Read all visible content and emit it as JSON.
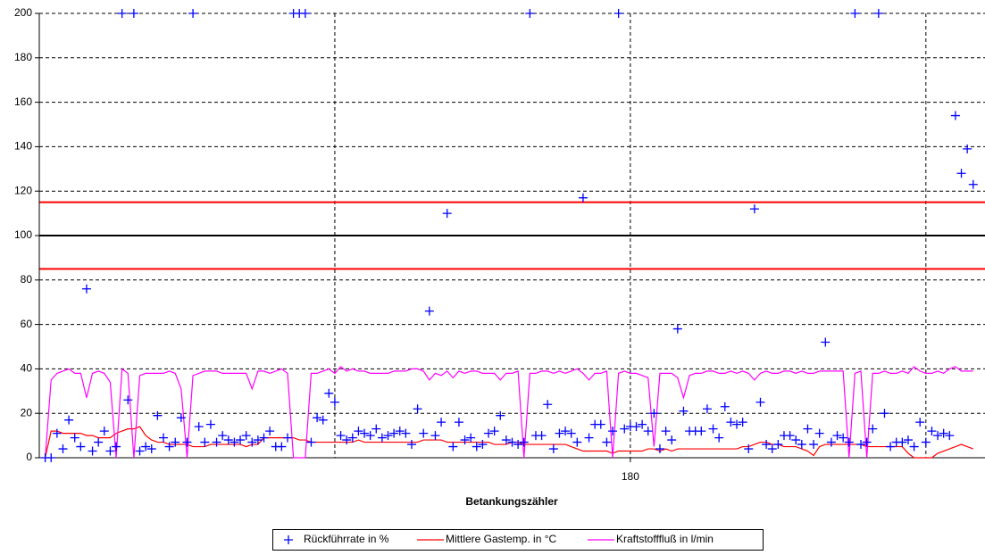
{
  "chart_data": {
    "type": "combo",
    "x_label": "Betankungszähler",
    "xlim": [
      80,
      240
    ],
    "xticks": [
      180
    ],
    "xgrid": [
      130,
      180,
      230
    ],
    "ylim": [
      0,
      200
    ],
    "yticks": [
      0,
      20,
      40,
      60,
      80,
      100,
      120,
      140,
      160,
      180,
      200
    ],
    "grid": true,
    "legend": "bottom",
    "reference_lines": [
      {
        "value": 115,
        "color": "#ff0000"
      },
      {
        "value": 100,
        "color": "#000000"
      },
      {
        "value": 85,
        "color": "#ff0000"
      }
    ],
    "x": [
      81,
      82,
      83,
      84,
      85,
      86,
      87,
      88,
      89,
      90,
      91,
      92,
      93,
      94,
      95,
      96,
      97,
      98,
      99,
      100,
      101,
      102,
      103,
      104,
      105,
      106,
      107,
      108,
      109,
      110,
      111,
      112,
      113,
      114,
      115,
      116,
      117,
      118,
      119,
      120,
      121,
      122,
      123,
      124,
      125,
      126,
      127,
      128,
      129,
      130,
      131,
      132,
      133,
      134,
      135,
      136,
      137,
      138,
      139,
      140,
      141,
      142,
      143,
      144,
      145,
      146,
      147,
      148,
      149,
      150,
      151,
      152,
      153,
      154,
      155,
      156,
      157,
      158,
      159,
      160,
      161,
      162,
      163,
      164,
      165,
      166,
      167,
      168,
      169,
      170,
      171,
      172,
      173,
      174,
      175,
      176,
      177,
      178,
      179,
      180,
      181,
      182,
      183,
      184,
      185,
      186,
      187,
      188,
      189,
      190,
      191,
      192,
      193,
      194,
      195,
      196,
      197,
      198,
      199,
      200,
      201,
      202,
      203,
      204,
      205,
      206,
      207,
      208,
      209,
      210,
      211,
      212,
      213,
      214,
      215,
      216,
      217,
      218,
      219,
      220,
      221,
      222,
      223,
      224,
      225,
      226,
      227,
      228,
      229,
      230,
      231,
      232,
      233,
      234,
      235,
      236,
      237,
      238
    ],
    "series": [
      {
        "name": "Rückführrate in %",
        "type": "scatter",
        "color": "#0000ff",
        "values": [
          0,
          0,
          11,
          4,
          17,
          9,
          5,
          76,
          3,
          7,
          12,
          3,
          5,
          200,
          26,
          200,
          3,
          5,
          4,
          19,
          9,
          5,
          7,
          18,
          7,
          200,
          14,
          7,
          15,
          7,
          10,
          8,
          7,
          8,
          10,
          7,
          8,
          9,
          12,
          5,
          5,
          9,
          200,
          200,
          200,
          7,
          18,
          17,
          29,
          25,
          10,
          8,
          9,
          12,
          11,
          10,
          13,
          9,
          10,
          11,
          12,
          11,
          6,
          22,
          11,
          66,
          10,
          16,
          110,
          5,
          16,
          8,
          9,
          5,
          6,
          11,
          12,
          19,
          8,
          7,
          6,
          7,
          200,
          10,
          10,
          24,
          4,
          11,
          12,
          11,
          7,
          117,
          9,
          15,
          15,
          7,
          12,
          200,
          13,
          14,
          14,
          15,
          12,
          20,
          4,
          12,
          8,
          58,
          21,
          12,
          12,
          12,
          22,
          13,
          9,
          23,
          16,
          15,
          16,
          4,
          112,
          25,
          6,
          4,
          6,
          10,
          10,
          8,
          6,
          13,
          6,
          11,
          52,
          7,
          10,
          9,
          7,
          200,
          6,
          7,
          13,
          200,
          20,
          5,
          7,
          7,
          8,
          5,
          16,
          7,
          12,
          10,
          11,
          10,
          154,
          128,
          139,
          123
        ]
      },
      {
        "name": "Mittlere Gastemp. in °C",
        "type": "line",
        "color": "#ff0000",
        "values": [
          0,
          12,
          12,
          11,
          11,
          11,
          11,
          10,
          10,
          9,
          9,
          9,
          11,
          12,
          13,
          13,
          14,
          10,
          8,
          7,
          7,
          6,
          6,
          6,
          6,
          5,
          5,
          5,
          6,
          6,
          6,
          6,
          6,
          6,
          5,
          6,
          6,
          9,
          9,
          9,
          9,
          9,
          9,
          8,
          8,
          7,
          7,
          7,
          7,
          7,
          7,
          7,
          7,
          8,
          7,
          7,
          7,
          7,
          7,
          7,
          7,
          7,
          7,
          7,
          8,
          8,
          8,
          8,
          7,
          7,
          7,
          7,
          7,
          7,
          7,
          7,
          6,
          6,
          6,
          7,
          7,
          6,
          6,
          6,
          6,
          6,
          6,
          6,
          6,
          5,
          4,
          3,
          3,
          3,
          3,
          3,
          2,
          3,
          3,
          3,
          3,
          3,
          4,
          4,
          3,
          4,
          3,
          4,
          4,
          4,
          4,
          4,
          4,
          4,
          4,
          4,
          4,
          4,
          5,
          5,
          6,
          7,
          7,
          6,
          6,
          5,
          5,
          5,
          4,
          3,
          1,
          5,
          6,
          6,
          6,
          6,
          6,
          6,
          6,
          5,
          5,
          5,
          5,
          5,
          5,
          5,
          2,
          0,
          0,
          0,
          0,
          2,
          3,
          4,
          5,
          6,
          5,
          4
        ]
      },
      {
        "name": "Kraftstofffluß in l/min",
        "type": "line",
        "color": "#ff00ff",
        "values": [
          0,
          35,
          38,
          39,
          40,
          38,
          38,
          27,
          38,
          39,
          38,
          34,
          0,
          40,
          38,
          0,
          37,
          38,
          38,
          38,
          38,
          39,
          38,
          31,
          0,
          37,
          38,
          39,
          39,
          39,
          38,
          38,
          38,
          38,
          38,
          31,
          39,
          39,
          38,
          39,
          40,
          38,
          0,
          0,
          0,
          38,
          38,
          39,
          40,
          38,
          41,
          39,
          40,
          39,
          39,
          38,
          38,
          38,
          38,
          39,
          39,
          39,
          40,
          40,
          39,
          35,
          38,
          37,
          39,
          36,
          39,
          38,
          39,
          39,
          38,
          38,
          38,
          35,
          38,
          38,
          39,
          0,
          38,
          38,
          39,
          39,
          38,
          39,
          38,
          39,
          40,
          38,
          35,
          38,
          38,
          39,
          0,
          38,
          39,
          38,
          38,
          37,
          36,
          5,
          38,
          38,
          38,
          36,
          27,
          37,
          38,
          38,
          39,
          39,
          38,
          38,
          39,
          38,
          39,
          38,
          35,
          38,
          39,
          38,
          38,
          39,
          39,
          38,
          39,
          38,
          38,
          39,
          39,
          39,
          39,
          39,
          0,
          38,
          39,
          0,
          38,
          38,
          39,
          38,
          38,
          39,
          38,
          41,
          39,
          38,
          38,
          39,
          38,
          40,
          41,
          39,
          39,
          39
        ]
      }
    ]
  }
}
